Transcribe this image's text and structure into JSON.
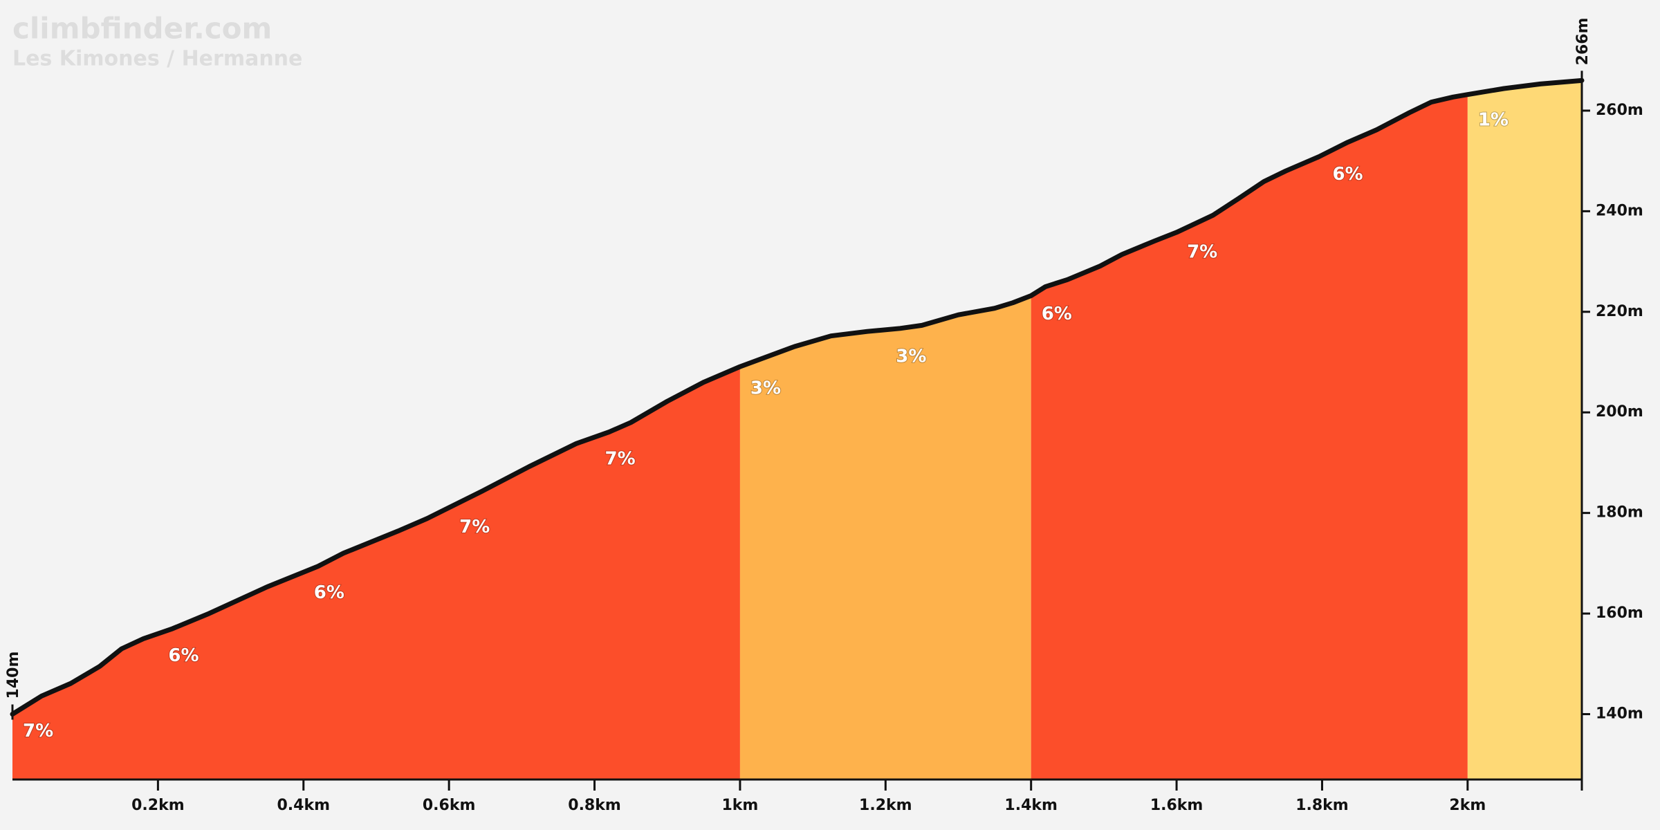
{
  "chart_data": {
    "type": "area",
    "title": "climbfinder.com",
    "subtitle": "Les Kimones / Hermanne",
    "x": [
      0,
      0.04,
      0.08,
      0.12,
      0.15,
      0.18,
      0.22,
      0.27,
      0.35,
      0.42,
      0.455,
      0.53,
      0.57,
      0.645,
      0.71,
      0.775,
      0.82,
      0.85,
      0.9,
      0.95,
      1.0,
      1.075,
      1.125,
      1.175,
      1.22,
      1.25,
      1.3,
      1.35,
      1.375,
      1.4,
      1.42,
      1.45,
      1.495,
      1.525,
      1.57,
      1.6,
      1.65,
      1.685,
      1.72,
      1.75,
      1.795,
      1.835,
      1.875,
      1.92,
      1.95,
      1.98,
      2.0,
      2.05,
      2.1,
      2.157
    ],
    "values": [
      140,
      143.6,
      146.1,
      149.5,
      153,
      155,
      157,
      160,
      165.3,
      169.4,
      172,
      176.4,
      178.9,
      184.3,
      189.2,
      193.8,
      196.1,
      198,
      202.2,
      206,
      209.1,
      213.1,
      215.2,
      216.1,
      216.7,
      217.3,
      219.4,
      220.7,
      221.8,
      223.2,
      225,
      226.4,
      229.1,
      231.4,
      234.1,
      235.8,
      239.2,
      242.5,
      245.9,
      248,
      250.8,
      253.7,
      256.2,
      259.6,
      261.7,
      262.7,
      263.2,
      264.4,
      265.3,
      266
    ],
    "line_color": "#111111",
    "segments": [
      {
        "from": 0,
        "to": 1.0,
        "color": "#fc4e2a"
      },
      {
        "from": 1.0,
        "to": 1.4,
        "color": "#feb24c"
      },
      {
        "from": 1.4,
        "to": 2.0,
        "color": "#fc4e2a"
      },
      {
        "from": 2.0,
        "to": 2.157,
        "color": "#fed976"
      }
    ],
    "grades": {
      "x": [
        0,
        0.2,
        0.4,
        0.6,
        0.8,
        1.0,
        1.2,
        1.4,
        1.6,
        1.8,
        2.0
      ],
      "values": [
        7,
        6,
        6,
        7,
        7,
        3,
        3,
        6,
        7,
        6,
        1
      ],
      "value_labels": [
        "7%",
        "6%",
        "6%",
        "7%",
        "7%",
        "3%",
        "3%",
        "6%",
        "7%",
        "6%",
        "1%"
      ]
    },
    "start_label": {
      "value": 140,
      "label": "140m"
    },
    "end_label": {
      "value": 266,
      "label": "266m"
    },
    "xlim": [
      0,
      2.157
    ],
    "ylim": [
      127,
      282
    ],
    "xticks": [
      {
        "value": 0.2,
        "label": "0.2km"
      },
      {
        "value": 0.4,
        "label": "0.4km"
      },
      {
        "value": 0.6,
        "label": "0.6km"
      },
      {
        "value": 0.8,
        "label": "0.8km"
      },
      {
        "value": 1,
        "label": "1km"
      },
      {
        "value": 1.2,
        "label": "1.2km"
      },
      {
        "value": 1.4,
        "label": "1.4km"
      },
      {
        "value": 1.6,
        "label": "1.6km"
      },
      {
        "value": 1.8,
        "label": "1.8km"
      },
      {
        "value": 2,
        "label": "2km"
      }
    ],
    "yticks": [
      {
        "value": 140,
        "label": "140m"
      },
      {
        "value": 160,
        "label": "160m"
      },
      {
        "value": 180,
        "label": "180m"
      },
      {
        "value": 200,
        "label": "200m"
      },
      {
        "value": 220,
        "label": "220m"
      },
      {
        "value": 240,
        "label": "240m"
      },
      {
        "value": 260,
        "label": "260m"
      }
    ]
  }
}
